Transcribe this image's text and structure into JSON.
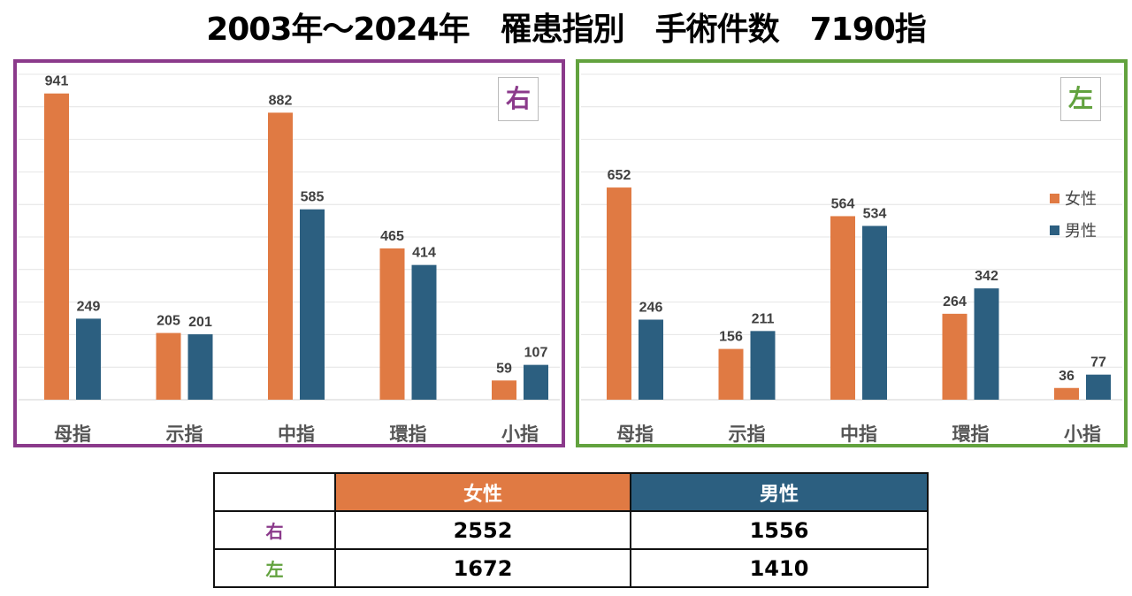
{
  "title": "2003年～2024年　罹患指別　手術件数　7190指",
  "colors": {
    "female": "#e07a43",
    "male": "#2c5f80",
    "right": "#8b3a8b",
    "left": "#62a23e"
  },
  "chart_data": [
    {
      "type": "bar",
      "side_label": "右",
      "categories": [
        "母指",
        "示指",
        "中指",
        "環指",
        "小指"
      ],
      "series": [
        {
          "name": "女性",
          "values": [
            941,
            205,
            882,
            465,
            59
          ]
        },
        {
          "name": "男性",
          "values": [
            249,
            201,
            585,
            414,
            107
          ]
        }
      ],
      "ylim": [
        0,
        1000
      ],
      "grid": true
    },
    {
      "type": "bar",
      "side_label": "左",
      "categories": [
        "母指",
        "示指",
        "中指",
        "環指",
        "小指"
      ],
      "series": [
        {
          "name": "女性",
          "values": [
            652,
            156,
            564,
            264,
            36
          ]
        },
        {
          "name": "男性",
          "values": [
            246,
            211,
            534,
            342,
            77
          ]
        }
      ],
      "ylim": [
        0,
        1000
      ],
      "grid": true,
      "legend": "right"
    }
  ],
  "table": {
    "headers": [
      "",
      "女性",
      "男性"
    ],
    "rows": [
      {
        "label": "右",
        "female": "2552",
        "male": "1556"
      },
      {
        "label": "左",
        "female": "1672",
        "male": "1410"
      }
    ]
  }
}
